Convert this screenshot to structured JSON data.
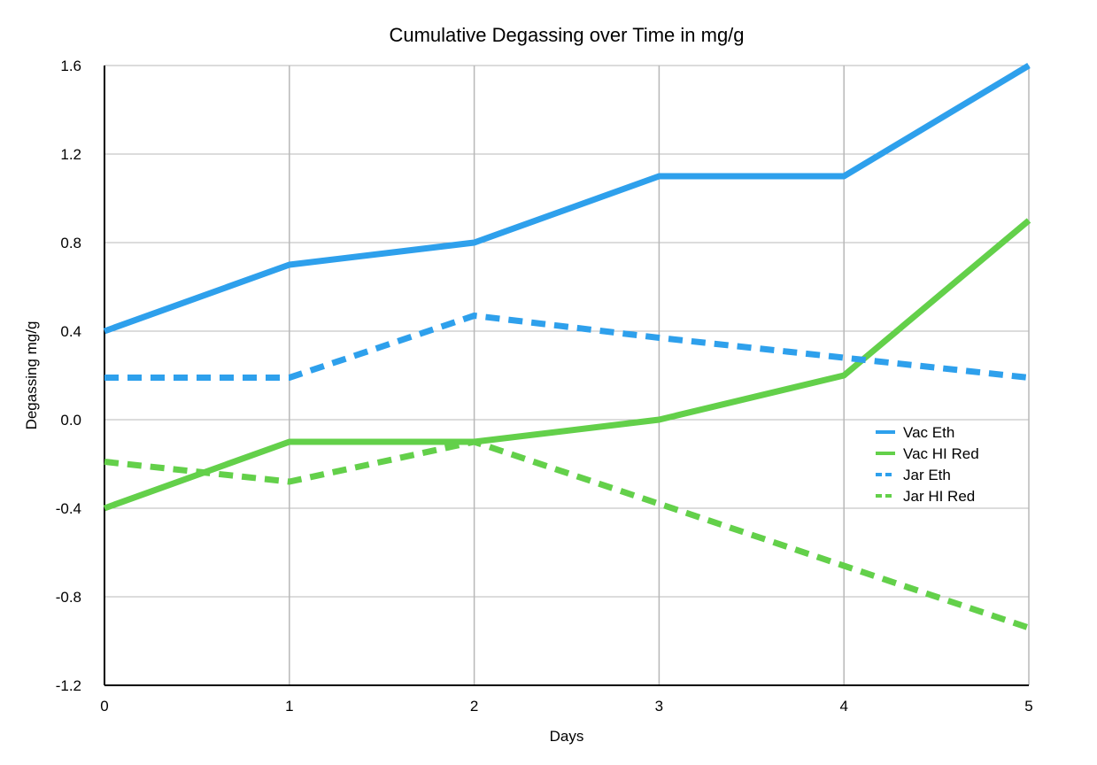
{
  "chart_data": {
    "type": "line",
    "title": "Cumulative Degassing over Time in mg/g",
    "xlabel": "Days",
    "ylabel": "Degassing mg/g",
    "x": [
      0,
      1,
      2,
      3,
      4,
      5
    ],
    "x_tick_labels": [
      "0",
      "1",
      "2",
      "3",
      "4",
      "5"
    ],
    "xlim": [
      0,
      5
    ],
    "ylim": [
      -1.2,
      1.6
    ],
    "y_ticks": [
      -1.2,
      -0.8,
      -0.4,
      0.0,
      0.4,
      0.8,
      1.2,
      1.6
    ],
    "y_tick_labels": [
      "-1.2",
      "-0.8",
      "-0.4",
      "0.0",
      "0.4",
      "0.8",
      "1.2",
      "1.6"
    ],
    "grid": true,
    "legend_position": "right",
    "series": [
      {
        "name": "Vac Eth",
        "color": "#2ea0ec",
        "style": "solid",
        "values": [
          0.4,
          0.7,
          0.8,
          1.1,
          1.1,
          1.6
        ]
      },
      {
        "name": "Vac HI Red",
        "color": "#63d04a",
        "style": "solid",
        "values": [
          -0.4,
          -0.1,
          -0.1,
          0.0,
          0.2,
          0.9
        ]
      },
      {
        "name": "Jar Eth",
        "color": "#2ea0ec",
        "style": "dashed",
        "values": [
          0.19,
          0.19,
          0.47,
          0.37,
          0.28,
          0.19
        ]
      },
      {
        "name": "Jar HI Red",
        "color": "#63d04a",
        "style": "dashed",
        "values": [
          -0.19,
          -0.28,
          -0.1,
          -0.38,
          -0.66,
          -0.94
        ]
      }
    ]
  }
}
